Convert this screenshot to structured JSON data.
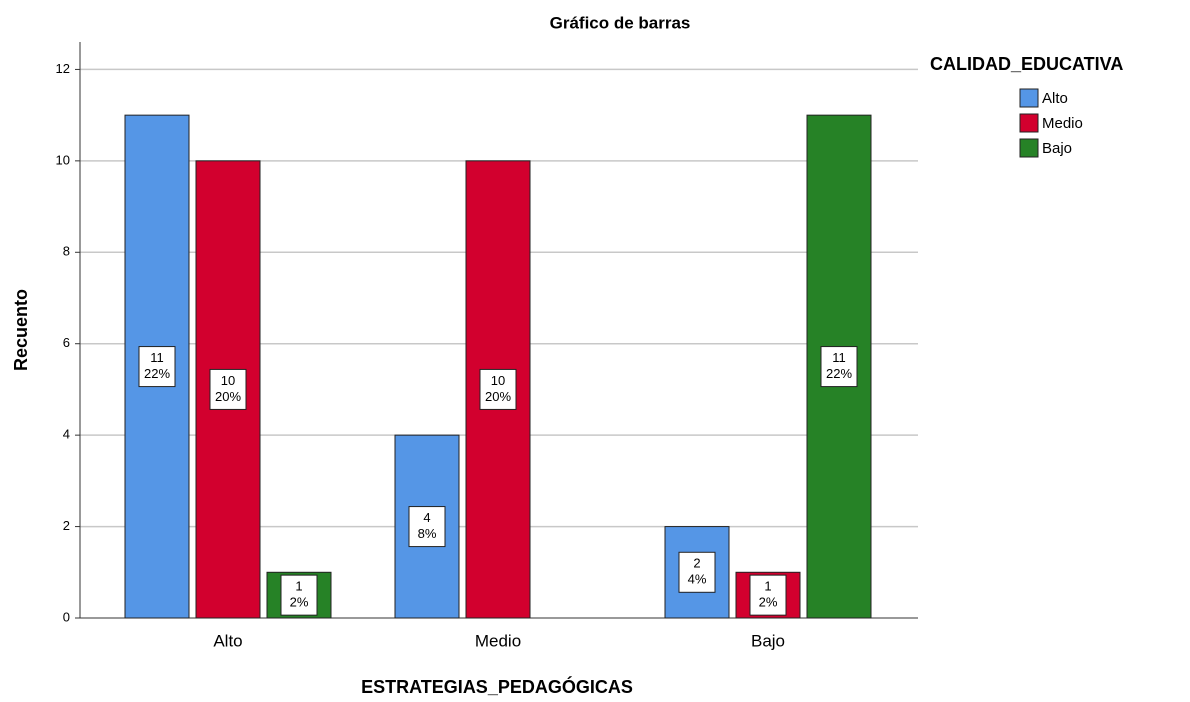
{
  "chart_data": {
    "type": "bar",
    "title": "Gráfico de barras",
    "x_label": "ESTRATEGIAS_PEDAGÓGICAS",
    "y_label": "Recuento",
    "legend_title": "CALIDAD_EDUCATIVA",
    "legend": "right",
    "categories": [
      "Alto",
      "Medio",
      "Bajo"
    ],
    "series": [
      {
        "name": "Alto",
        "color": "#5596e6",
        "values": [
          11,
          4,
          2
        ],
        "percent_labels": [
          "22%",
          "8%",
          "4%"
        ]
      },
      {
        "name": "Medio",
        "color": "#d2002e",
        "values": [
          10,
          10,
          1
        ],
        "percent_labels": [
          "20%",
          "20%",
          "2%"
        ]
      },
      {
        "name": "Bajo",
        "color": "#268226",
        "values": [
          1,
          null,
          11
        ],
        "percent_labels": [
          "2%",
          null,
          "22%"
        ]
      }
    ],
    "ylim": [
      0,
      12.6
    ],
    "yticks": [
      0,
      2,
      4,
      6,
      8,
      10,
      12
    ],
    "grid": true
  }
}
